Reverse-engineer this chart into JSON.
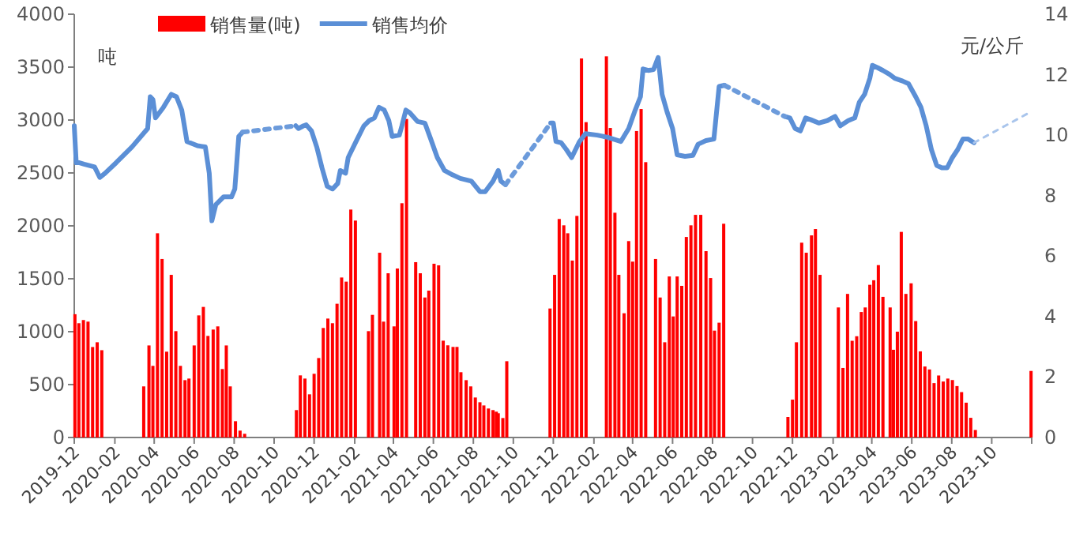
{
  "chart_data": {
    "type": "bar",
    "ylabel": "吨",
    "y2label": "元/公斤",
    "legend": "top left",
    "xlim": [
      "2019-12",
      "2023-12"
    ],
    "xticks": [
      "2019-12",
      "2020-02",
      "2020-04",
      "2020-06",
      "2020-08",
      "2020-10",
      "2020-12",
      "2021-02",
      "2021-04",
      "2021-06",
      "2021-08",
      "2021-10",
      "2021-12",
      "2022-02",
      "2022-04",
      "2022-06",
      "2022-08",
      "2022-10",
      "2022-12",
      "2023-02",
      "2023-04",
      "2023-06",
      "2023-08",
      "2023-10",
      {
        "value": "2023-12",
        "label": null
      }
    ],
    "ylim": [
      0,
      4000
    ],
    "yticks": [
      0,
      500,
      1000,
      1500,
      2000,
      2500,
      3000,
      3500,
      4000
    ],
    "y2lim": [
      0,
      14
    ],
    "y2ticks": [
      0,
      2,
      4,
      6,
      8,
      10,
      12,
      14
    ],
    "series": [
      {
        "name": "销售量(吨)",
        "color": "#ff0000",
        "x": [
          "2019-12-02",
          "2019-12-08",
          "2019-12-15",
          "2019-12-22",
          "2019-12-29",
          "2020-01-05",
          "2020-01-12",
          "2020-03-16",
          "2020-03-24",
          "2020-03-30",
          "2020-04-06",
          "2020-04-13",
          "2020-04-20",
          "2020-04-27",
          "2020-05-04",
          "2020-05-11",
          "2020-05-18",
          "2020-05-24",
          "2020-06-01",
          "2020-06-08",
          "2020-06-15",
          "2020-06-22",
          "2020-06-30",
          "2020-07-07",
          "2020-07-14",
          "2020-07-20",
          "2020-07-26",
          "2020-08-03",
          "2020-08-10",
          "2020-08-17",
          "2020-11-04",
          "2020-11-10",
          "2020-11-17",
          "2020-11-24",
          "2020-12-01",
          "2020-12-08",
          "2020-12-15",
          "2020-12-22",
          "2020-12-29",
          "2021-01-05",
          "2021-01-12",
          "2021-01-19",
          "2021-01-26",
          "2021-02-02",
          "2021-02-22",
          "2021-02-28",
          "2021-03-11",
          "2021-03-17",
          "2021-03-24",
          "2021-04-02",
          "2021-04-07",
          "2021-04-14",
          "2021-04-21",
          "2021-05-05",
          "2021-05-12",
          "2021-05-19",
          "2021-05-25",
          "2021-06-02",
          "2021-06-09",
          "2021-06-16",
          "2021-06-23",
          "2021-07-01",
          "2021-07-07",
          "2021-07-13",
          "2021-07-21",
          "2021-07-28",
          "2021-08-04",
          "2021-08-11",
          "2021-08-17",
          "2021-08-24",
          "2021-08-31",
          "2021-09-05",
          "2021-09-08",
          "2021-09-15",
          "2021-09-21",
          "2021-11-26",
          "2021-12-03",
          "2021-12-10",
          "2021-12-17",
          "2021-12-23",
          "2021-12-30",
          "2022-01-06",
          "2022-01-13",
          "2022-01-20",
          "2022-02-20",
          "2022-02-26",
          "2022-03-05",
          "2022-03-11",
          "2022-03-19",
          "2022-03-26",
          "2022-04-01",
          "2022-04-07",
          "2022-04-14",
          "2022-04-21",
          "2022-05-06",
          "2022-05-13",
          "2022-05-20",
          "2022-05-27",
          "2022-06-02",
          "2022-06-08",
          "2022-06-15",
          "2022-06-22",
          "2022-06-29",
          "2022-07-06",
          "2022-07-14",
          "2022-07-22",
          "2022-07-29",
          "2022-08-04",
          "2022-08-11",
          "2022-08-18",
          "2022-11-24",
          "2022-12-01",
          "2022-12-07",
          "2022-12-15",
          "2022-12-22",
          "2022-12-30",
          "2023-01-05",
          "2023-01-12",
          "2023-02-09",
          "2023-02-16",
          "2023-02-23",
          "2023-03-02",
          "2023-03-09",
          "2023-03-16",
          "2023-03-22",
          "2023-03-29",
          "2023-04-04",
          "2023-04-11",
          "2023-04-18",
          "2023-04-29",
          "2023-05-04",
          "2023-05-10",
          "2023-05-16",
          "2023-05-23",
          "2023-05-31",
          "2023-06-07",
          "2023-06-14",
          "2023-06-21",
          "2023-06-28",
          "2023-07-05",
          "2023-07-12",
          "2023-07-19",
          "2023-07-26",
          "2023-08-02",
          "2023-08-09",
          "2023-08-16",
          "2023-08-23",
          "2023-08-30",
          "2023-09-06",
          "2023-11-30"
        ],
        "values": [
          1165,
          1080,
          1110,
          1095,
          855,
          900,
          825,
          483,
          870,
          677,
          1930,
          1687,
          811,
          1537,
          1005,
          677,
          542,
          557,
          870,
          1154,
          1234,
          960,
          1020,
          1050,
          647,
          870,
          483,
          154,
          65,
          35,
          259,
          587,
          557,
          408,
          602,
          751,
          1035,
          1124,
          1080,
          1264,
          1512,
          1473,
          2154,
          2050,
          1005,
          1159,
          1746,
          1095,
          1552,
          1050,
          1597,
          2214,
          3010,
          1657,
          1552,
          1323,
          1388,
          1642,
          1627,
          915,
          871,
          856,
          856,
          617,
          542,
          483,
          378,
          333,
          303,
          274,
          259,
          244,
          229,
          184,
          721,
          1219,
          1537,
          2065,
          2005,
          1930,
          1672,
          2094,
          3582,
          2980,
          3602,
          2925,
          2124,
          1537,
          1174,
          1856,
          1662,
          2896,
          3104,
          2602,
          1687,
          1323,
          900,
          1522,
          1144,
          1522,
          1433,
          1895,
          2005,
          2104,
          2104,
          1761,
          1507,
          1010,
          1085,
          2020,
          194,
          358,
          900,
          1841,
          1746,
          1910,
          1970,
          1537,
          1229,
          657,
          1357,
          914,
          957,
          1186,
          1229,
          1443,
          1486,
          1629,
          1329,
          1229,
          829,
          1000,
          1943,
          1357,
          1457,
          1100,
          814,
          671,
          643,
          514,
          586,
          529,
          557,
          543,
          486,
          429,
          329,
          186,
          71,
          629
        ]
      },
      {
        "name": "销售均价",
        "type": "line",
        "axis": "y2",
        "color": "#5b8fd6",
        "line_style": "solid",
        "x": [
          "2019-12-01",
          "2019-12-04",
          "2019-12-08",
          "2019-12-16",
          "2020-01-01",
          "2020-01-09",
          "2020-01-17",
          "2020-02-03",
          "2020-02-27",
          "2020-03-22",
          "2020-03-26",
          "2020-03-30",
          "2020-04-03",
          "2020-04-15",
          "2020-04-27",
          "2020-05-05",
          "2020-05-13",
          "2020-05-21",
          "2020-06-06",
          "2020-06-18",
          "2020-06-24",
          "2020-06-28",
          "2020-07-04",
          "2020-07-16",
          "2020-07-28",
          "2020-08-02",
          "2020-08-08",
          "2020-08-14",
          "2020-11-03",
          "2020-11-07",
          "2020-11-15",
          "2020-11-19",
          "2020-11-27",
          "2020-12-05",
          "2020-12-13",
          "2020-12-21",
          "2020-12-29",
          "2021-01-06",
          "2021-01-10",
          "2021-01-18",
          "2021-01-22",
          "2021-02-03",
          "2021-02-15",
          "2021-02-23",
          "2021-03-03",
          "2021-03-10",
          "2021-03-18",
          "2021-03-25",
          "2021-03-30",
          "2021-04-10",
          "2021-04-14",
          "2021-04-20",
          "2021-04-26",
          "2021-05-08",
          "2021-05-19",
          "2021-05-28",
          "2021-06-07",
          "2021-06-18",
          "2021-06-30",
          "2021-07-12",
          "2021-07-29",
          "2021-08-11",
          "2021-08-19",
          "2021-08-31",
          "2021-09-08",
          "2021-09-12",
          "2021-09-19",
          "2021-11-27",
          "2021-12-01",
          "2021-12-05",
          "2021-12-13",
          "2021-12-21",
          "2021-12-29",
          "2022-01-10",
          "2022-01-19",
          "2022-02-06",
          "2022-02-22",
          "2022-03-14",
          "2022-03-26",
          "2022-04-05",
          "2022-04-13",
          "2022-04-17",
          "2022-04-25",
          "2022-05-03",
          "2022-05-10",
          "2022-05-16",
          "2022-05-24",
          "2022-06-01",
          "2022-06-08",
          "2022-06-20",
          "2022-07-02",
          "2022-07-10",
          "2022-07-22",
          "2022-08-03",
          "2022-08-11",
          "2022-08-19",
          "2022-11-19",
          "2022-11-27",
          "2022-12-05",
          "2022-12-13",
          "2022-12-21",
          "2022-12-29",
          "2023-01-10",
          "2023-01-23",
          "2023-02-04",
          "2023-02-12",
          "2023-02-24",
          "2023-03-06",
          "2023-03-13",
          "2023-03-21",
          "2023-03-29",
          "2023-04-02",
          "2023-04-10",
          "2023-04-18",
          "2023-04-28",
          "2023-05-06",
          "2023-05-18",
          "2023-05-27",
          "2023-06-07",
          "2023-06-15",
          "2023-06-23",
          "2023-07-01",
          "2023-07-09",
          "2023-07-17",
          "2023-07-25",
          "2023-08-02",
          "2023-08-10",
          "2023-08-18",
          "2023-08-26",
          "2023-09-04"
        ],
        "values": [
          10.31,
          9.09,
          9.09,
          9.04,
          8.95,
          8.6,
          8.74,
          9.09,
          9.61,
          10.22,
          11.27,
          11.18,
          10.57,
          10.92,
          11.35,
          11.27,
          10.83,
          9.79,
          9.65,
          9.61,
          8.74,
          7.17,
          7.7,
          7.96,
          7.96,
          8.22,
          9.96,
          10.1,
          10.31,
          10.22,
          10.31,
          10.34,
          10.14,
          9.61,
          8.92,
          8.31,
          8.22,
          8.4,
          8.83,
          8.74,
          9.26,
          9.79,
          10.31,
          10.48,
          10.57,
          10.92,
          10.83,
          10.48,
          9.96,
          10.0,
          10.31,
          10.83,
          10.74,
          10.45,
          10.4,
          9.87,
          9.26,
          8.83,
          8.69,
          8.57,
          8.48,
          8.13,
          8.13,
          8.48,
          8.83,
          8.48,
          8.36,
          10.4,
          10.4,
          9.79,
          9.75,
          9.52,
          9.26,
          9.79,
          10.05,
          10.0,
          9.93,
          9.79,
          10.22,
          10.83,
          11.27,
          12.19,
          12.14,
          12.17,
          12.57,
          11.35,
          10.74,
          10.22,
          9.35,
          9.3,
          9.33,
          9.7,
          9.82,
          9.87,
          11.61,
          11.65,
          10.62,
          10.57,
          10.22,
          10.14,
          10.57,
          10.51,
          10.4,
          10.48,
          10.62,
          10.31,
          10.48,
          10.57,
          11.09,
          11.35,
          11.88,
          12.31,
          12.23,
          12.14,
          12.01,
          11.88,
          11.79,
          11.7,
          11.27,
          10.92,
          10.31,
          9.52,
          9.0,
          8.92,
          8.92,
          9.26,
          9.52,
          9.87,
          9.87,
          9.75
        ]
      },
      {
        "type": "line",
        "axis": "y2",
        "color": "#6c9bdb",
        "line_style": "dotted",
        "x": [
          "2020-08-14",
          "2020-11-03"
        ],
        "values": [
          10.1,
          10.31
        ]
      },
      {
        "type": "line",
        "axis": "y2",
        "color": "#6c9bdb",
        "line_style": "dotted",
        "x": [
          "2021-09-19",
          "2021-11-27"
        ],
        "values": [
          8.36,
          10.4
        ]
      },
      {
        "type": "line",
        "axis": "y2",
        "color": "#6c9bdb",
        "line_style": "dotted",
        "x": [
          "2022-08-19",
          "2022-11-19"
        ],
        "values": [
          11.65,
          10.62
        ]
      },
      {
        "type": "line",
        "axis": "y2",
        "color": "#a9c5ec",
        "line_style": "dotted",
        "x": [
          "2023-09-04",
          "2023-11-27"
        ],
        "values": [
          9.75,
          10.74
        ]
      }
    ]
  }
}
